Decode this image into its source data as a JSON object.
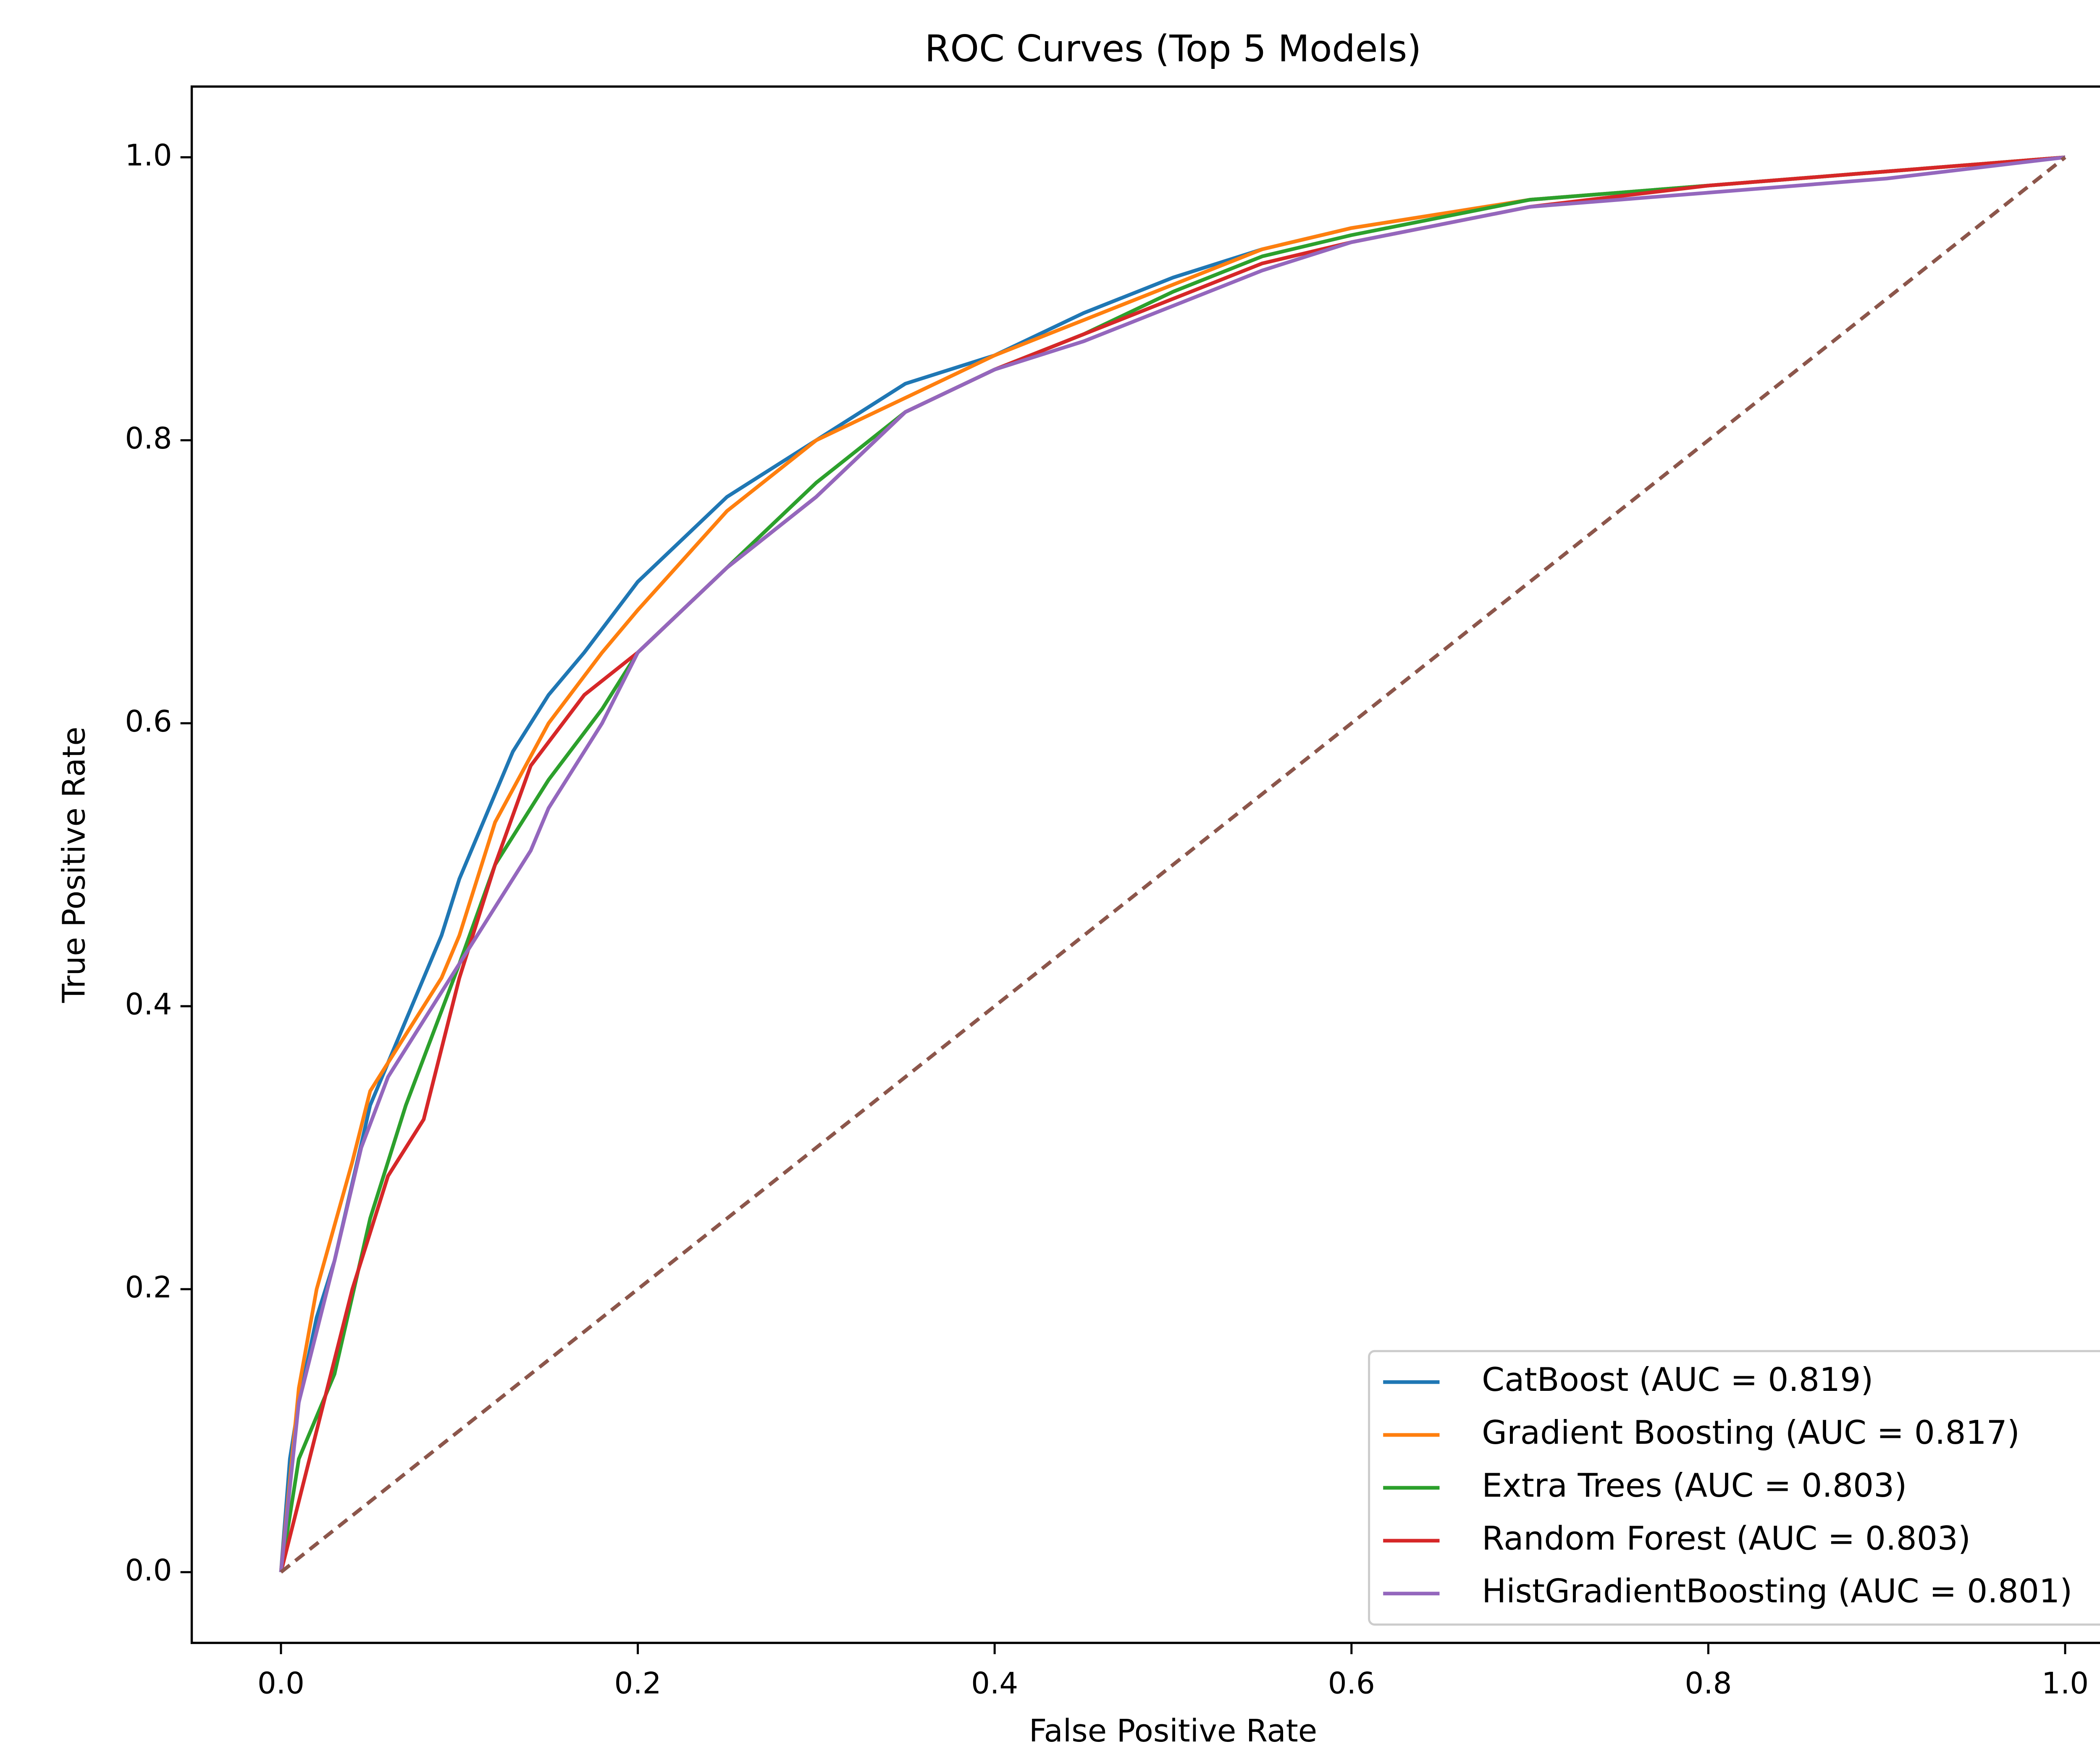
{
  "chart_data": {
    "type": "line",
    "title": "ROC Curves (Top 5 Models)",
    "x_label": "False Positive Rate",
    "y_label": "True Positive Rate",
    "xlim": [
      -0.05,
      1.05
    ],
    "ylim": [
      -0.05,
      1.05
    ],
    "xticks": [
      {
        "value": 0,
        "label": "0.0"
      },
      0.2,
      0.4,
      0.6,
      0.8,
      {
        "value": 1,
        "label": "1.0"
      }
    ],
    "yticks": [
      {
        "value": 0,
        "label": "0.0"
      },
      0.2,
      0.4,
      0.6,
      0.8,
      {
        "value": 1,
        "label": "1.0"
      }
    ],
    "grid": false,
    "legend_position": "lower right",
    "series": [
      {
        "name": "CatBoost (AUC = 0.819)",
        "color": "#1f77b4",
        "x": [
          0,
          0.005,
          0.01,
          0.02,
          0.03,
          0.05,
          0.07,
          0.09,
          0.1,
          0.12,
          0.13,
          0.15,
          0.17,
          0.2,
          0.25,
          0.3,
          0.35,
          0.4,
          0.45,
          0.5,
          0.55,
          0.6,
          0.7,
          0.8,
          0.9,
          1
        ],
        "values": [
          0,
          0.08,
          0.12,
          0.18,
          0.22,
          0.33,
          0.39,
          0.45,
          0.49,
          0.55,
          0.58,
          0.62,
          0.65,
          0.7,
          0.76,
          0.8,
          0.84,
          0.86,
          0.89,
          0.915,
          0.935,
          0.95,
          0.97,
          0.98,
          0.99,
          1
        ]
      },
      {
        "name": "Gradient Boosting (AUC = 0.817)",
        "color": "#ff7f0e",
        "x": [
          0,
          0.01,
          0.02,
          0.04,
          0.05,
          0.07,
          0.09,
          0.1,
          0.12,
          0.15,
          0.18,
          0.2,
          0.25,
          0.3,
          0.35,
          0.4,
          0.45,
          0.5,
          0.55,
          0.6,
          0.7,
          0.8,
          0.9,
          1
        ],
        "values": [
          0,
          0.13,
          0.2,
          0.29,
          0.34,
          0.38,
          0.42,
          0.45,
          0.53,
          0.6,
          0.65,
          0.68,
          0.75,
          0.8,
          0.83,
          0.86,
          0.885,
          0.91,
          0.935,
          0.95,
          0.97,
          0.98,
          0.99,
          1
        ]
      },
      {
        "name": "Extra Trees (AUC = 0.803)",
        "color": "#2ca02c",
        "x": [
          0,
          0.01,
          0.03,
          0.05,
          0.07,
          0.1,
          0.12,
          0.15,
          0.18,
          0.2,
          0.25,
          0.3,
          0.35,
          0.4,
          0.45,
          0.5,
          0.55,
          0.6,
          0.7,
          0.8,
          0.9,
          1
        ],
        "values": [
          0,
          0.08,
          0.14,
          0.25,
          0.33,
          0.43,
          0.5,
          0.56,
          0.61,
          0.65,
          0.71,
          0.77,
          0.82,
          0.85,
          0.875,
          0.905,
          0.93,
          0.945,
          0.97,
          0.98,
          0.99,
          1
        ]
      },
      {
        "name": "Random Forest (AUC = 0.803)",
        "color": "#d62728",
        "x": [
          0,
          0.02,
          0.04,
          0.06,
          0.08,
          0.1,
          0.12,
          0.14,
          0.17,
          0.2,
          0.25,
          0.3,
          0.35,
          0.4,
          0.45,
          0.5,
          0.55,
          0.6,
          0.7,
          0.8,
          0.9,
          1
        ],
        "values": [
          0,
          0.1,
          0.2,
          0.28,
          0.32,
          0.42,
          0.5,
          0.57,
          0.62,
          0.65,
          0.71,
          0.76,
          0.82,
          0.85,
          0.875,
          0.9,
          0.925,
          0.94,
          0.965,
          0.98,
          0.99,
          1
        ]
      },
      {
        "name": "HistGradientBoosting (AUC = 0.801)",
        "color": "#9467bd",
        "x": [
          0,
          0.01,
          0.03,
          0.045,
          0.06,
          0.08,
          0.1,
          0.12,
          0.14,
          0.15,
          0.18,
          0.2,
          0.25,
          0.3,
          0.35,
          0.4,
          0.45,
          0.5,
          0.55,
          0.6,
          0.7,
          0.8,
          0.9,
          1
        ],
        "values": [
          0,
          0.12,
          0.22,
          0.3,
          0.35,
          0.39,
          0.43,
          0.47,
          0.51,
          0.54,
          0.6,
          0.65,
          0.71,
          0.76,
          0.82,
          0.85,
          0.87,
          0.895,
          0.92,
          0.94,
          0.965,
          0.975,
          0.985,
          1
        ]
      }
    ],
    "reference_line": {
      "x": [
        0,
        1
      ],
      "values": [
        0,
        1
      ],
      "color": "#8c564b",
      "dashed": true
    }
  }
}
